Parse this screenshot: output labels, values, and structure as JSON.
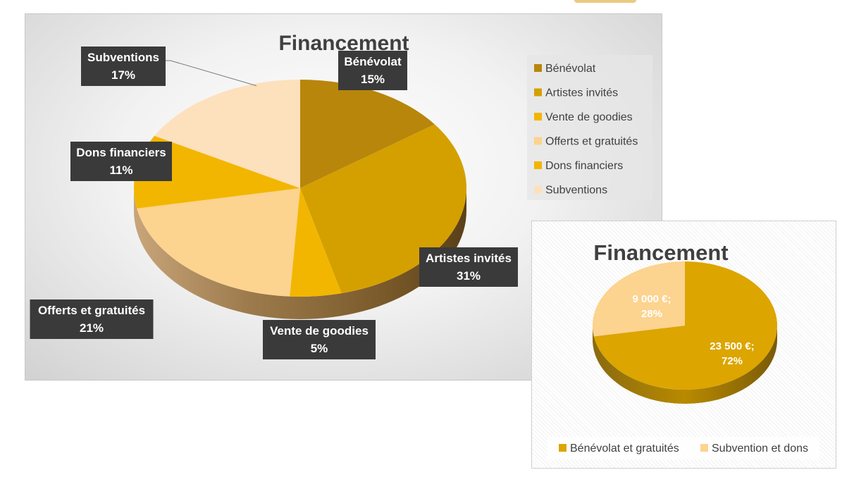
{
  "chart_data": [
    {
      "type": "pie",
      "title": "Financement",
      "categories": [
        "Bénévolat",
        "Artistes invités",
        "Vente de goodies",
        "Offerts et gratuités",
        "Dons financiers",
        "Subventions"
      ],
      "values": [
        15,
        31,
        5,
        21,
        11,
        17
      ],
      "labels": [
        "15%",
        "31%",
        "5%",
        "21%",
        "11%",
        "17%"
      ],
      "colors": [
        "#b8860b",
        "#d4a000",
        "#f2b600",
        "#fcd38f",
        "#f2b600",
        "#fde0bc"
      ],
      "legend_position": "right"
    },
    {
      "type": "pie",
      "title": "Financement",
      "categories": [
        "Bénévolat et gratuités",
        "Subvention et dons"
      ],
      "values": [
        23500,
        9000
      ],
      "value_labels": [
        "23 500 €;",
        "9 000 €;"
      ],
      "percent_labels": [
        "72%",
        "28%"
      ],
      "colors": [
        "#dca500",
        "#fcd38f"
      ],
      "legend_position": "bottom"
    }
  ]
}
